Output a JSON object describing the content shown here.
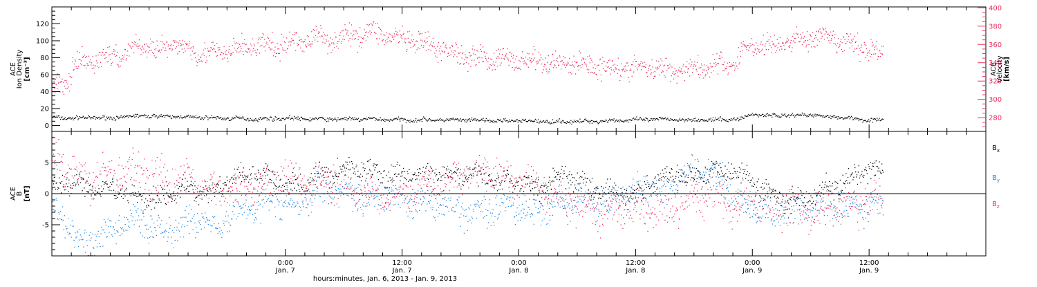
{
  "colors": {
    "density": "#000000",
    "velocity": "#e8305e",
    "bx": "#000000",
    "by": "#1e88e5",
    "bz": "#e8305e",
    "axis": "#000000"
  },
  "chart_data": [
    {
      "type": "scatter",
      "panel": "top",
      "ylabel_lines": [
        "ACE",
        "Ion Density",
        "[cm⁻³]"
      ],
      "ylim": [
        -7,
        140
      ],
      "yticks": [
        "0",
        "20",
        "40",
        "60",
        "80",
        "100",
        "120"
      ],
      "right_axis": {
        "ylabel_lines": [
          "ACE",
          "Velocity",
          "[km/s]"
        ],
        "ylim": [
          265,
          401
        ],
        "yticks": [
          "280",
          "300",
          "320",
          "340",
          "360",
          "380",
          "400"
        ],
        "color": "#e8305e"
      },
      "series": [
        {
          "color": "#000000",
          "axis": "left",
          "x": [
            -24,
            -22,
            -20,
            -18,
            -15,
            -12,
            -9,
            -6,
            -3,
            0,
            3,
            6,
            9,
            12,
            15,
            18,
            21,
            24,
            27,
            30,
            33,
            36,
            39,
            42,
            45,
            47,
            48,
            50,
            54,
            58,
            60,
            61.4
          ],
          "values": [
            10,
            9,
            10,
            9,
            12,
            11,
            10,
            9,
            8,
            9,
            8,
            8,
            8,
            7,
            7,
            7,
            6,
            6,
            5,
            5,
            6,
            7,
            8,
            7,
            7,
            9,
            14,
            12,
            13,
            9,
            7,
            6
          ],
          "spread": 2
        },
        {
          "color": "#e8305e",
          "axis": "right",
          "x": [
            -24,
            -23,
            -22.4,
            -22,
            -21,
            -19,
            -17,
            -15,
            -13,
            -11,
            -9,
            -7,
            -5,
            -3,
            -1,
            1,
            3,
            5,
            7,
            9,
            11,
            13,
            15,
            17,
            19,
            21,
            23,
            25,
            27,
            29,
            31,
            33,
            35,
            37,
            39,
            41,
            43,
            45,
            46.5,
            47,
            48,
            50,
            52,
            54,
            56,
            58,
            60,
            61.4
          ],
          "values": [
            318,
            317,
            318,
            332,
            340,
            345,
            348,
            360,
            355,
            360,
            352,
            350,
            355,
            360,
            357,
            363,
            368,
            366,
            370,
            375,
            368,
            363,
            358,
            352,
            348,
            345,
            344,
            343,
            340,
            341,
            338,
            337,
            334,
            335,
            333,
            334,
            336,
            338,
            342,
            355,
            360,
            358,
            364,
            368,
            366,
            360,
            356,
            348
          ],
          "spread": 10
        }
      ]
    },
    {
      "type": "scatter",
      "panel": "bottom",
      "ylabel_lines": [
        "ACE",
        "B",
        "[nT]"
      ],
      "ylim": [
        -10,
        10
      ],
      "yticks": [
        "-5",
        "0",
        "5"
      ],
      "zero_line": true,
      "legend": [
        "Bx",
        "By",
        "Bz"
      ],
      "legend_placement": "right",
      "series": [
        {
          "name": "Bx",
          "color": "#000000",
          "x": [
            -24,
            -22,
            -20,
            -18,
            -16,
            -14,
            -12,
            -10,
            -8,
            -6,
            -4,
            -2,
            0,
            2,
            4,
            6,
            8,
            10,
            12,
            14,
            16,
            18,
            20,
            22,
            24,
            26,
            28,
            30,
            32,
            34,
            36,
            38,
            40,
            42,
            44,
            46,
            48,
            50,
            52,
            54,
            56,
            58,
            60,
            61.4
          ],
          "values": [
            1,
            2,
            1,
            1,
            0,
            -1,
            0,
            1,
            0,
            2,
            3,
            3,
            1,
            2,
            3,
            4,
            4,
            3,
            3,
            3,
            3,
            3,
            3,
            2,
            2,
            1,
            3,
            2,
            1,
            0,
            0,
            2,
            3,
            3,
            4,
            4,
            2,
            0,
            -1,
            0,
            1,
            2,
            4,
            3.5
          ],
          "spread": 1.5
        },
        {
          "name": "By",
          "color": "#1e88e5",
          "x": [
            -24,
            -22.5,
            -21,
            -19,
            -17,
            -15,
            -13,
            -11,
            -9,
            -7,
            -5,
            -3,
            -1,
            1,
            3,
            5,
            7,
            9,
            11,
            13,
            15,
            17,
            19,
            21,
            23,
            25,
            27,
            29,
            31,
            33,
            35,
            37,
            39,
            41,
            43,
            45,
            47,
            49,
            51,
            53,
            55,
            57,
            59,
            61.4
          ],
          "values": [
            -2,
            -5,
            -8,
            -7,
            -5,
            -4,
            -6,
            -5,
            -4,
            -5,
            -3,
            -2,
            -1,
            -2,
            0,
            1,
            0,
            -1,
            0,
            -1,
            -2,
            -2,
            -3,
            -2,
            -2,
            -3,
            -2,
            -1,
            -1,
            -2,
            0,
            1,
            0,
            3,
            4,
            2,
            -2,
            -3,
            -3,
            -3,
            -2,
            -2,
            -2,
            -2
          ],
          "spread": 2
        },
        {
          "name": "Bz",
          "color": "#e8305e",
          "x": [
            -24,
            -22,
            -20,
            -18,
            -16,
            -14,
            -12,
            -10,
            -8,
            -6,
            -4,
            -2,
            0,
            2,
            4,
            6,
            8,
            10,
            12,
            14,
            16,
            18,
            20,
            22,
            24,
            26,
            28,
            30,
            32,
            34,
            36,
            38,
            40,
            42,
            44,
            46,
            48,
            50,
            52,
            54,
            56,
            58,
            60,
            61.4
          ],
          "values": [
            6,
            4,
            2,
            3,
            4,
            3,
            2,
            3,
            0,
            1,
            1,
            2,
            3,
            2,
            2,
            1,
            0,
            -1,
            0,
            1,
            2,
            3,
            4,
            3,
            2,
            1,
            -1,
            -2,
            -3,
            -2,
            -3,
            -3,
            -2,
            -1,
            0,
            -2,
            -1,
            -2,
            -2,
            -3,
            -2,
            -2,
            -1,
            -1
          ],
          "spread": 2.5
        }
      ]
    }
  ],
  "x_axis": {
    "xlim": [
      -24,
      72
    ],
    "major_ticks": [
      0,
      12,
      24,
      36,
      48,
      60
    ],
    "minor_step": 2,
    "tick_labels": [
      {
        "x": 0,
        "time": "0:00",
        "date": "Jan. 7"
      },
      {
        "x": 12,
        "time": "12:00",
        "date": "Jan. 7"
      },
      {
        "x": 24,
        "time": "0:00",
        "date": "Jan. 8"
      },
      {
        "x": 36,
        "time": "12:00",
        "date": "Jan. 8"
      },
      {
        "x": 48,
        "time": "0:00",
        "date": "Jan. 9"
      },
      {
        "x": 60,
        "time": "12:00",
        "date": "Jan. 9"
      }
    ],
    "label": "hours:minutes, Jan.  6, 2013 - Jan.  9, 2013"
  }
}
